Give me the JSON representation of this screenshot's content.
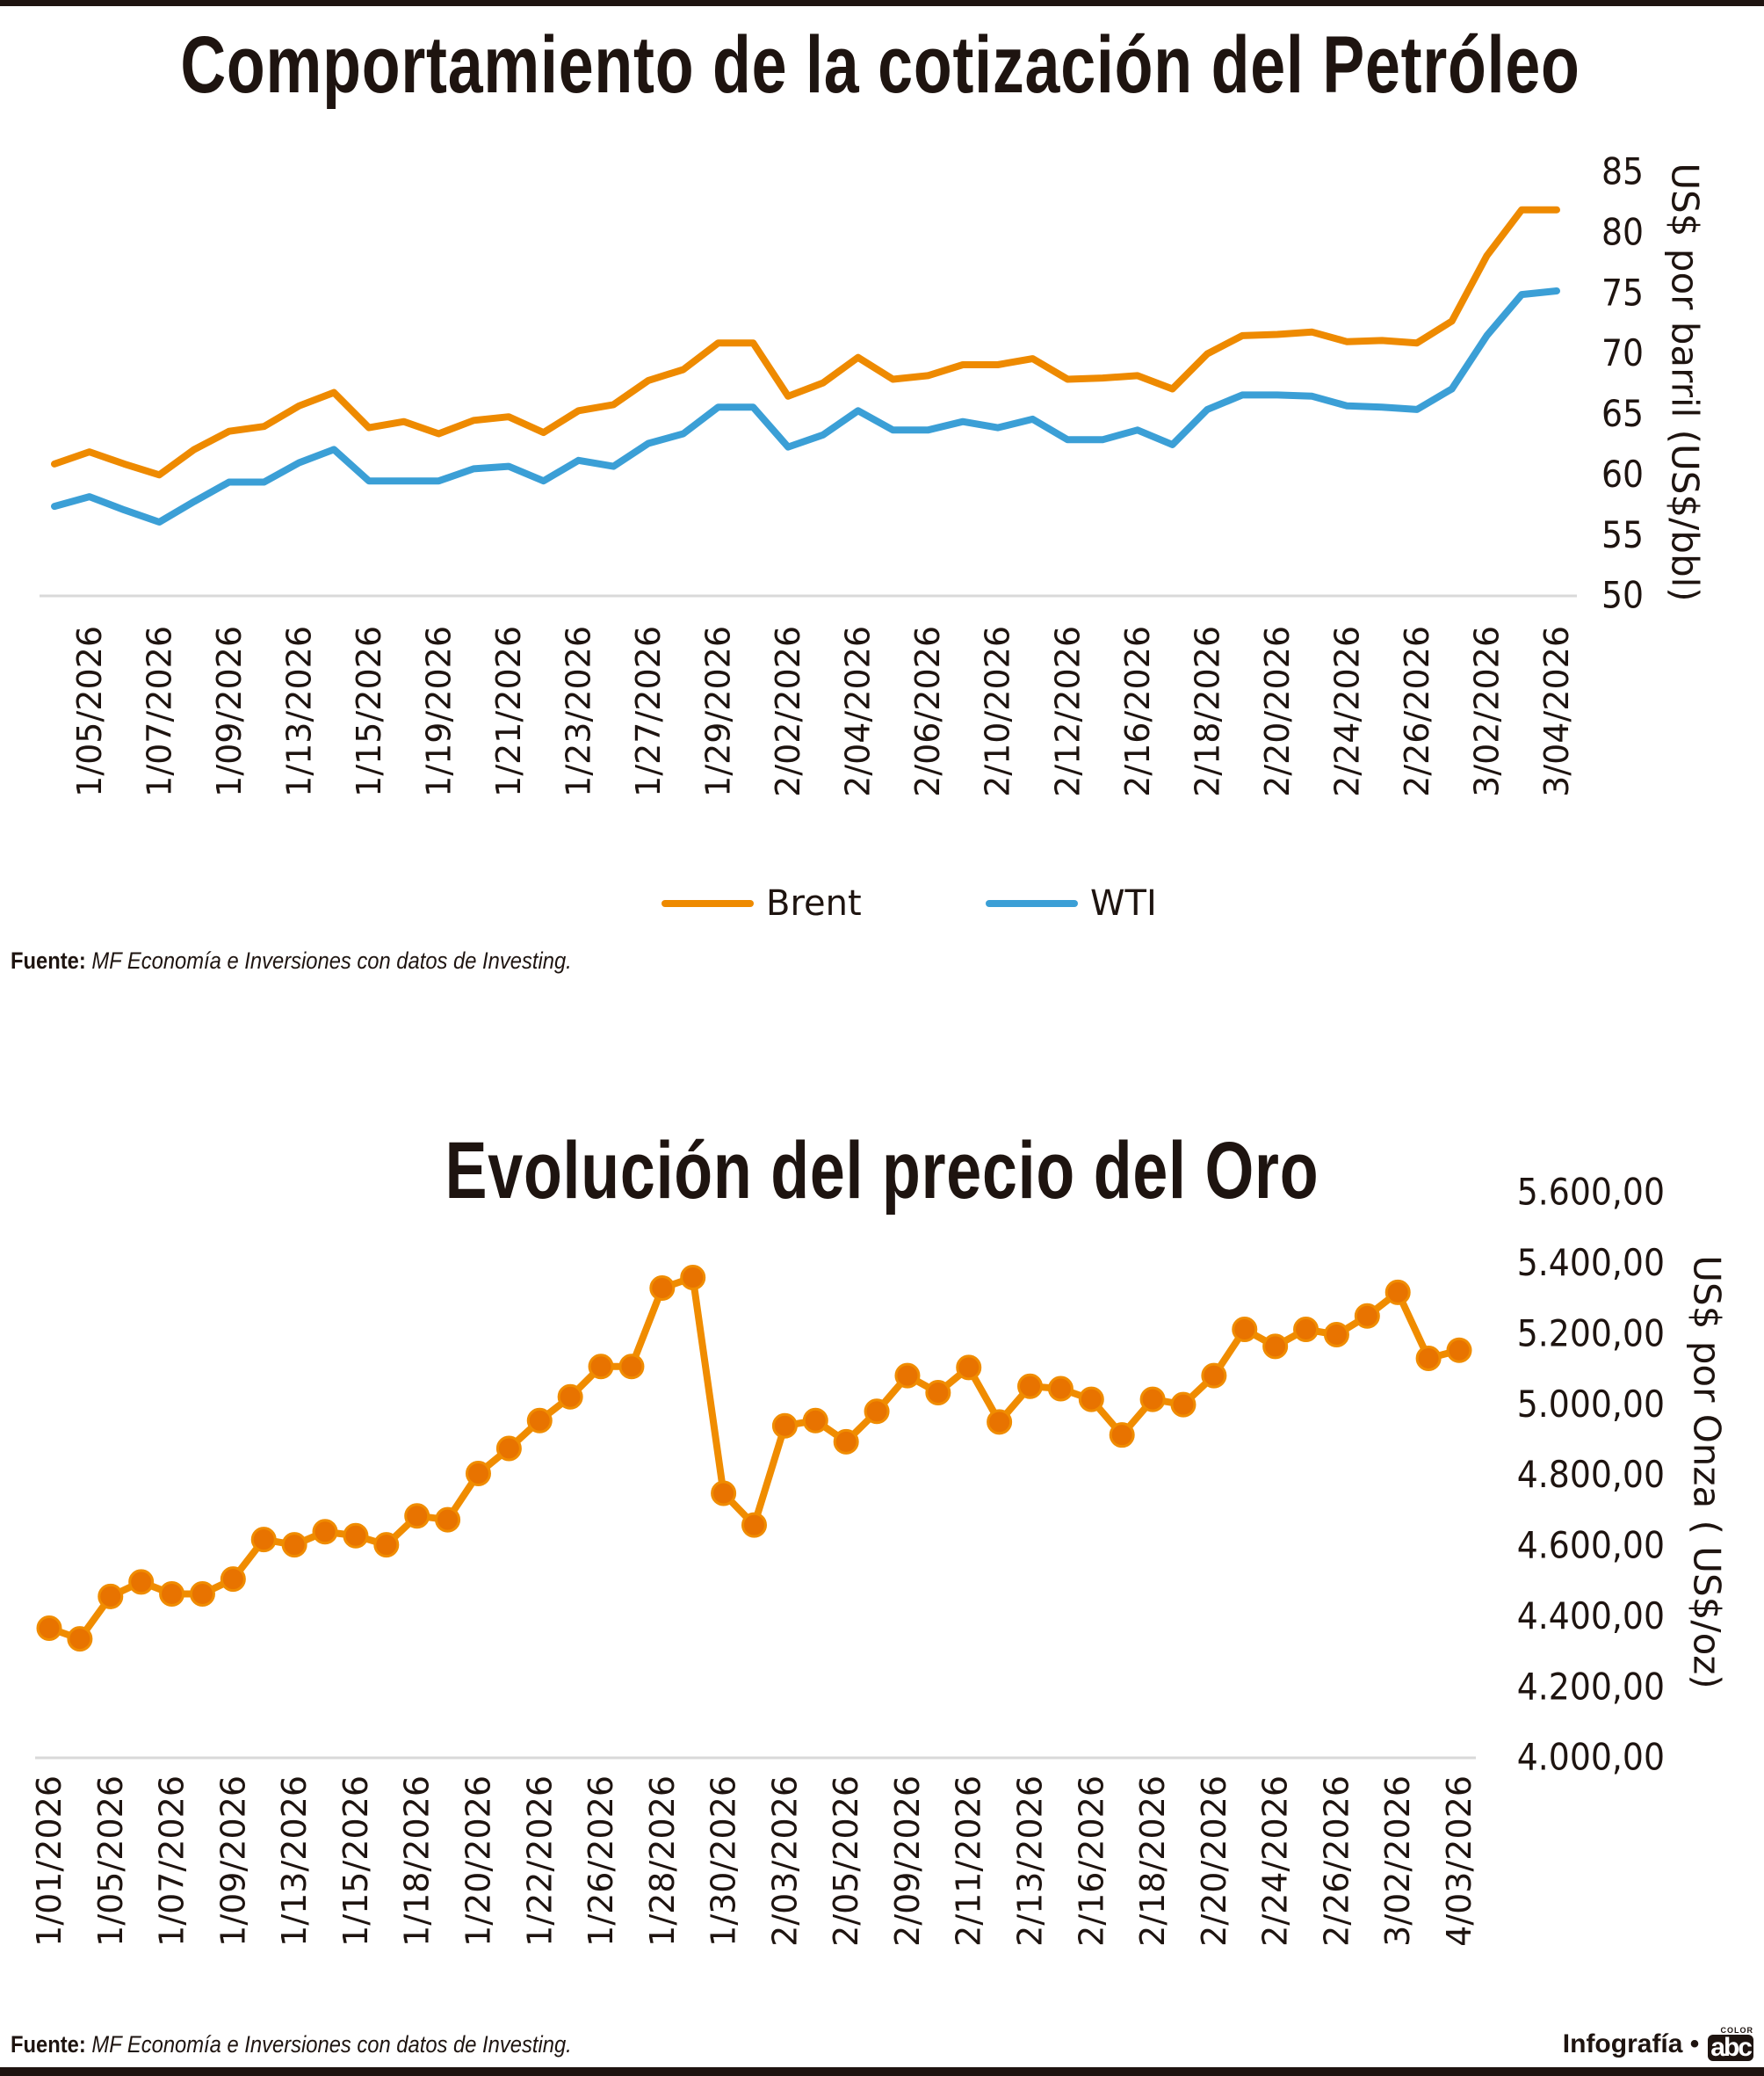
{
  "colors": {
    "brent": "#EE8A00",
    "wti": "#3B9FD6",
    "gold_line": "#F08C00",
    "gold_marker": "#E87300",
    "axis": "#d9d9d9",
    "text": "#1e1410"
  },
  "footer": {
    "source_label": "Fuente:",
    "source_text": "MF Economía e Inversiones con datos de Investing.",
    "credit": "Infografía •",
    "logo_text": "abc",
    "logo_sub": "COLOR"
  },
  "chart_data": [
    {
      "type": "line",
      "title": "Comportamiento de la cotización del Petróleo",
      "ylabel": "US$  por barril (US$/bbl)",
      "xlabel": "",
      "ylim": [
        50,
        85
      ],
      "y_ticks": [
        "50",
        "55",
        "60",
        "65",
        "70",
        "75",
        "80",
        "85"
      ],
      "y_tick_values": [
        50,
        55,
        60,
        65,
        70,
        75,
        80,
        85
      ],
      "x_tick_labels": [
        "1/05/2026",
        "1/07/2026",
        "1/09/2026",
        "1/13/2026",
        "1/15/2026",
        "1/19/2026",
        "1/21/2026",
        "1/23/2026",
        "1/27/2026",
        "1/29/2026",
        "2/02/2026",
        "2/04/2026",
        "2/06/2026",
        "2/10/2026",
        "2/12/2026",
        "2/16/2026",
        "2/18/2026",
        "2/20/2026",
        "2/24/2026",
        "2/26/2026",
        "3/02/2026",
        "3/04/2026"
      ],
      "x_tick_every": 2,
      "x_tick_offset": 1,
      "grid": false,
      "legend": "bottom",
      "series": [
        {
          "name": "Brent",
          "color": "#EE8A00",
          "values": [
            60.9,
            61.9,
            60.9,
            60.0,
            62.1,
            63.6,
            64.0,
            65.7,
            66.8,
            63.9,
            64.4,
            63.4,
            64.5,
            64.8,
            63.5,
            65.3,
            65.8,
            67.8,
            68.7,
            70.9,
            70.9,
            66.5,
            67.6,
            69.7,
            67.9,
            68.2,
            69.1,
            69.1,
            69.6,
            67.9,
            68.0,
            68.2,
            67.1,
            70.0,
            71.5,
            71.6,
            71.8,
            71.0,
            71.1,
            70.9,
            72.7,
            78.1,
            81.9,
            81.9
          ]
        },
        {
          "name": "WTI",
          "color": "#3B9FD6",
          "values": [
            57.4,
            58.2,
            57.1,
            56.1,
            57.8,
            59.4,
            59.4,
            61.0,
            62.1,
            59.5,
            59.5,
            59.5,
            60.5,
            60.7,
            59.5,
            61.2,
            60.7,
            62.6,
            63.4,
            65.6,
            65.6,
            62.3,
            63.3,
            65.3,
            63.7,
            63.7,
            64.4,
            63.9,
            64.6,
            62.9,
            62.9,
            63.7,
            62.5,
            65.4,
            66.6,
            66.6,
            66.5,
            65.7,
            65.6,
            65.4,
            67.1,
            71.5,
            74.9,
            75.2
          ]
        }
      ]
    },
    {
      "type": "line",
      "title": "Evolución del precio del Oro",
      "ylabel": "US$ por Onza ( US$/oz)",
      "xlabel": "",
      "ylim": [
        4000,
        5600
      ],
      "y_ticks": [
        "4.000,00",
        "4.200,00",
        "4.400,00",
        "4.600,00",
        "4.800,00",
        "5.000,00",
        "5.200,00",
        "5.400,00",
        "5.600,00"
      ],
      "y_tick_values": [
        4000,
        4200,
        4400,
        4600,
        4800,
        5000,
        5200,
        5400,
        5600
      ],
      "x_tick_labels": [
        "1/01/2026",
        "1/05/2026",
        "1/07/2026",
        "1/09/2026",
        "1/13/2026",
        "1/15/2026",
        "1/18/2026",
        "1/20/2026",
        "1/22/2026",
        "1/26/2026",
        "1/28/2026",
        "1/30/2026",
        "2/03/2026",
        "2/05/2026",
        "2/09/2026",
        "2/11/2026",
        "2/13/2026",
        "2/16/2026",
        "2/18/2026",
        "2/20/2026",
        "2/24/2026",
        "2/26/2026",
        "3/02/2026",
        "4/03/2026"
      ],
      "x_tick_every": 2,
      "x_tick_offset": 0,
      "grid": false,
      "markers": true,
      "series": [
        {
          "color": "#F08C00",
          "values": [
            4367,
            4337,
            4457,
            4498,
            4464,
            4464,
            4506,
            4618,
            4603,
            4640,
            4629,
            4603,
            4685,
            4674,
            4805,
            4876,
            4955,
            5022,
            5108,
            5108,
            5330,
            5360,
            4749,
            4659,
            4940,
            4955,
            4895,
            4981,
            5082,
            5034,
            5105,
            4951,
            5052,
            5045,
            5015,
            4914,
            5015,
            5000,
            5082,
            5213,
            5165,
            5213,
            5198,
            5251,
            5318,
            5131,
            5154
          ]
        }
      ]
    }
  ]
}
